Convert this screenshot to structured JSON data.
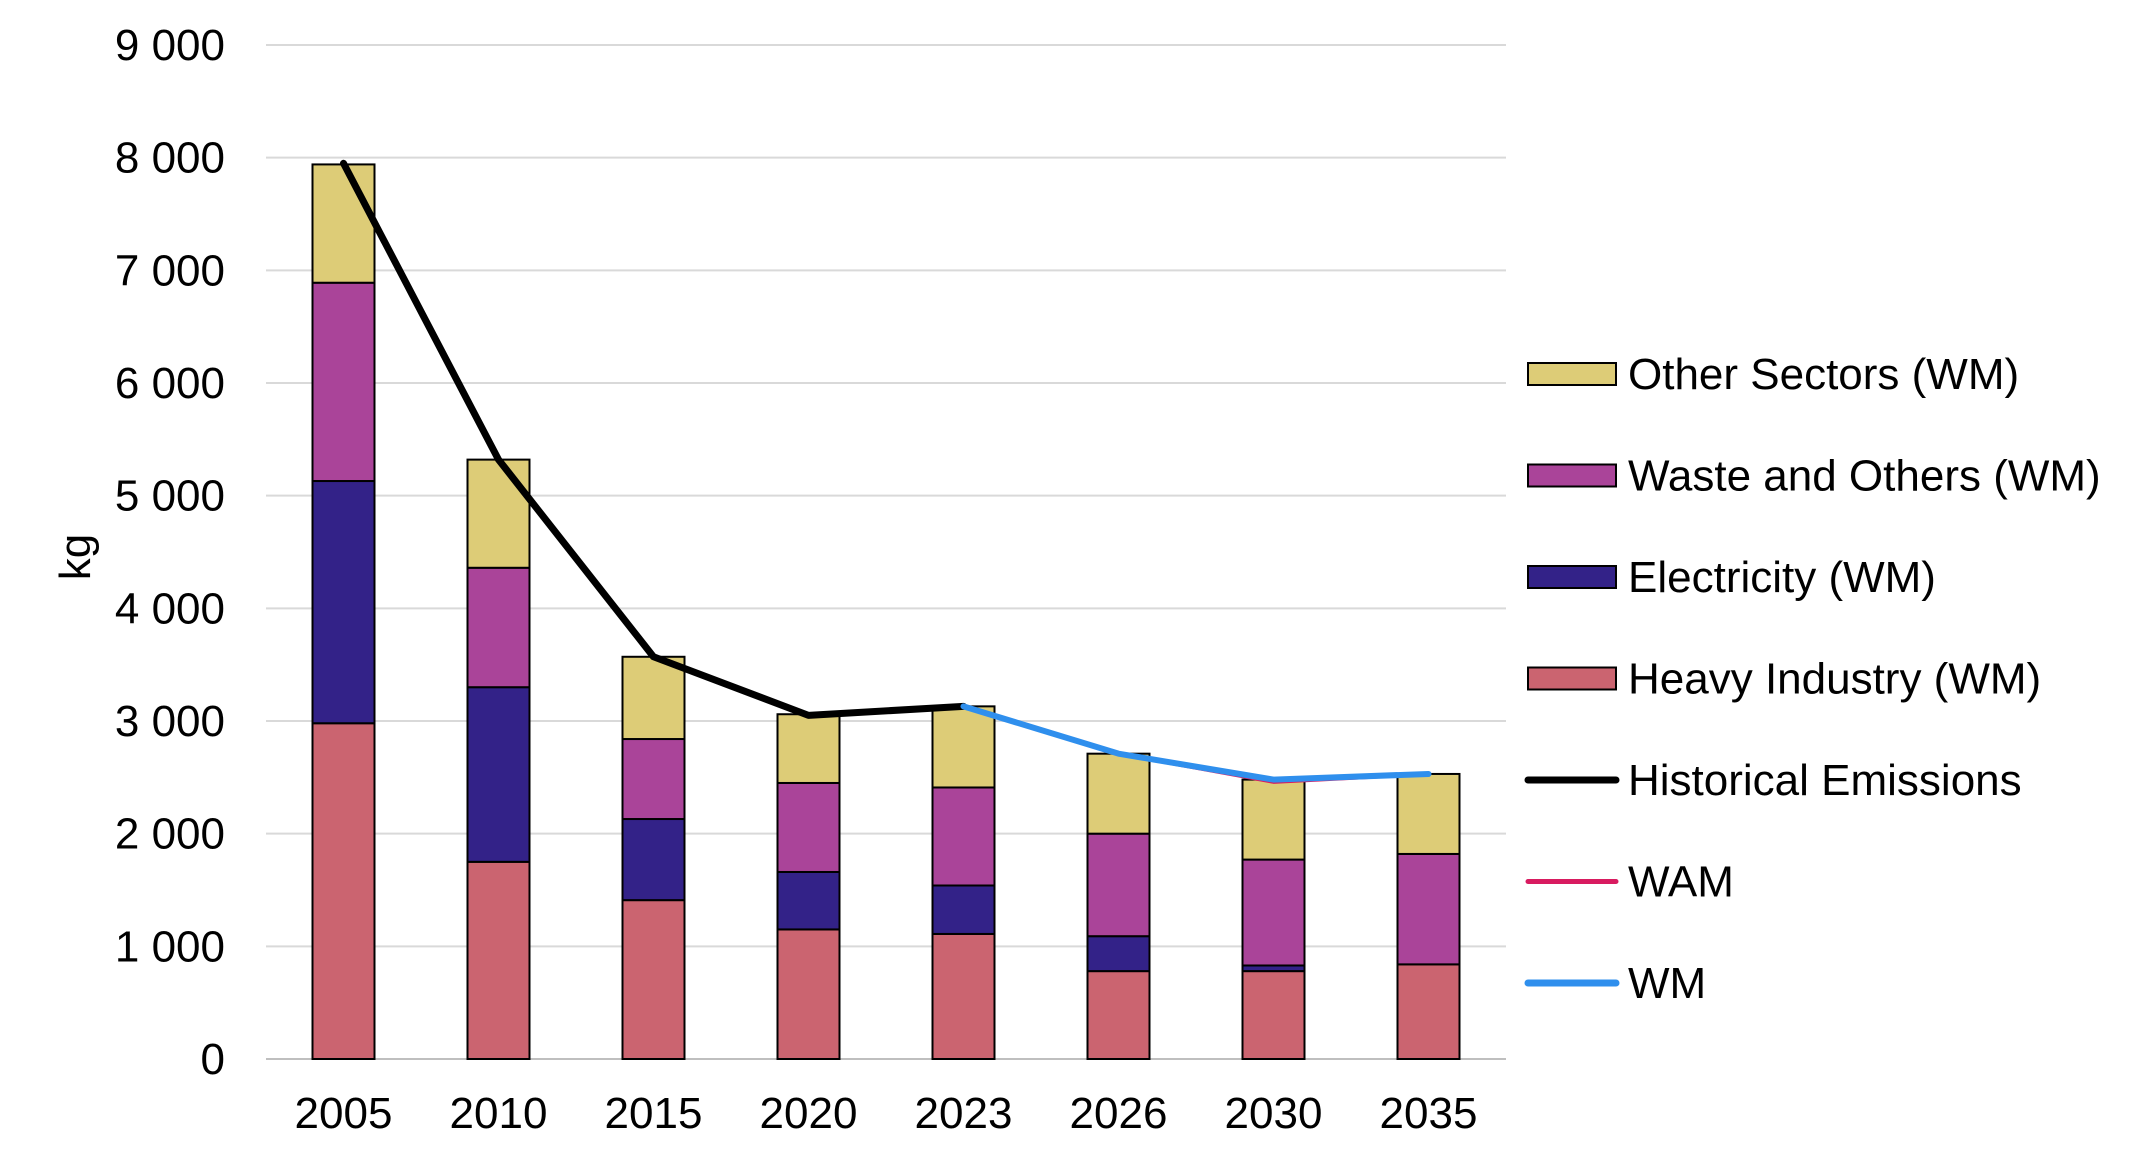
{
  "chart_data": {
    "type": "bar",
    "stacked": true,
    "ylabel": "kg",
    "ylim": [
      0,
      9000
    ],
    "yticks": [
      0,
      1000,
      2000,
      3000,
      4000,
      5000,
      6000,
      7000,
      8000,
      9000
    ],
    "ytick_labels": [
      "0",
      "1 000",
      "2 000",
      "3 000",
      "4 000",
      "5 000",
      "6 000",
      "7 000",
      "8 000",
      "9 000"
    ],
    "grid": true,
    "categories": [
      "2005",
      "2010",
      "2015",
      "2020",
      "2023",
      "2026",
      "2030",
      "2035"
    ],
    "series": [
      {
        "name": "Heavy Industry (WM)",
        "color": "#CB6470",
        "values": [
          2980,
          1750,
          1410,
          1150,
          1110,
          780,
          780,
          840
        ]
      },
      {
        "name": "Electricity (WM)",
        "color": "#332288",
        "values": [
          2150,
          1550,
          720,
          510,
          430,
          310,
          50,
          0
        ]
      },
      {
        "name": "Waste and Others (WM)",
        "color": "#AA4499",
        "values": [
          1760,
          1060,
          710,
          790,
          870,
          910,
          940,
          980
        ]
      },
      {
        "name": "Other Sectors (WM)",
        "color": "#DDCC77",
        "values": [
          1050,
          960,
          730,
          610,
          720,
          710,
          710,
          710
        ]
      }
    ],
    "lines": [
      {
        "name": "Historical Emissions",
        "color": "#000000",
        "x": [
          "2005",
          "2010",
          "2015",
          "2020",
          "2023"
        ],
        "values": [
          7950,
          5320,
          3570,
          3050,
          3130
        ]
      },
      {
        "name": "WAM",
        "color": "#D81B60",
        "x": [
          "2023",
          "2026",
          "2030",
          "2035"
        ],
        "values": [
          3130,
          2710,
          2460,
          2530
        ]
      },
      {
        "name": "WM",
        "color": "#2F8FED",
        "x": [
          "2023",
          "2026",
          "2030",
          "2035"
        ],
        "values": [
          3130,
          2710,
          2480,
          2530
        ]
      }
    ],
    "legend": {
      "position": "right",
      "items": [
        {
          "label": "Other Sectors (WM)",
          "kind": "box",
          "color": "#DDCC77"
        },
        {
          "label": "Waste and Others (WM)",
          "kind": "box",
          "color": "#AA4499"
        },
        {
          "label": "Electricity (WM)",
          "kind": "box",
          "color": "#332288"
        },
        {
          "label": "Heavy Industry (WM)",
          "kind": "box",
          "color": "#CB6470"
        },
        {
          "label": "Historical Emissions",
          "kind": "line",
          "color": "#000000"
        },
        {
          "label": "WAM",
          "kind": "line",
          "color": "#D81B60"
        },
        {
          "label": "WM",
          "kind": "line",
          "color": "#2F8FED"
        }
      ]
    }
  }
}
